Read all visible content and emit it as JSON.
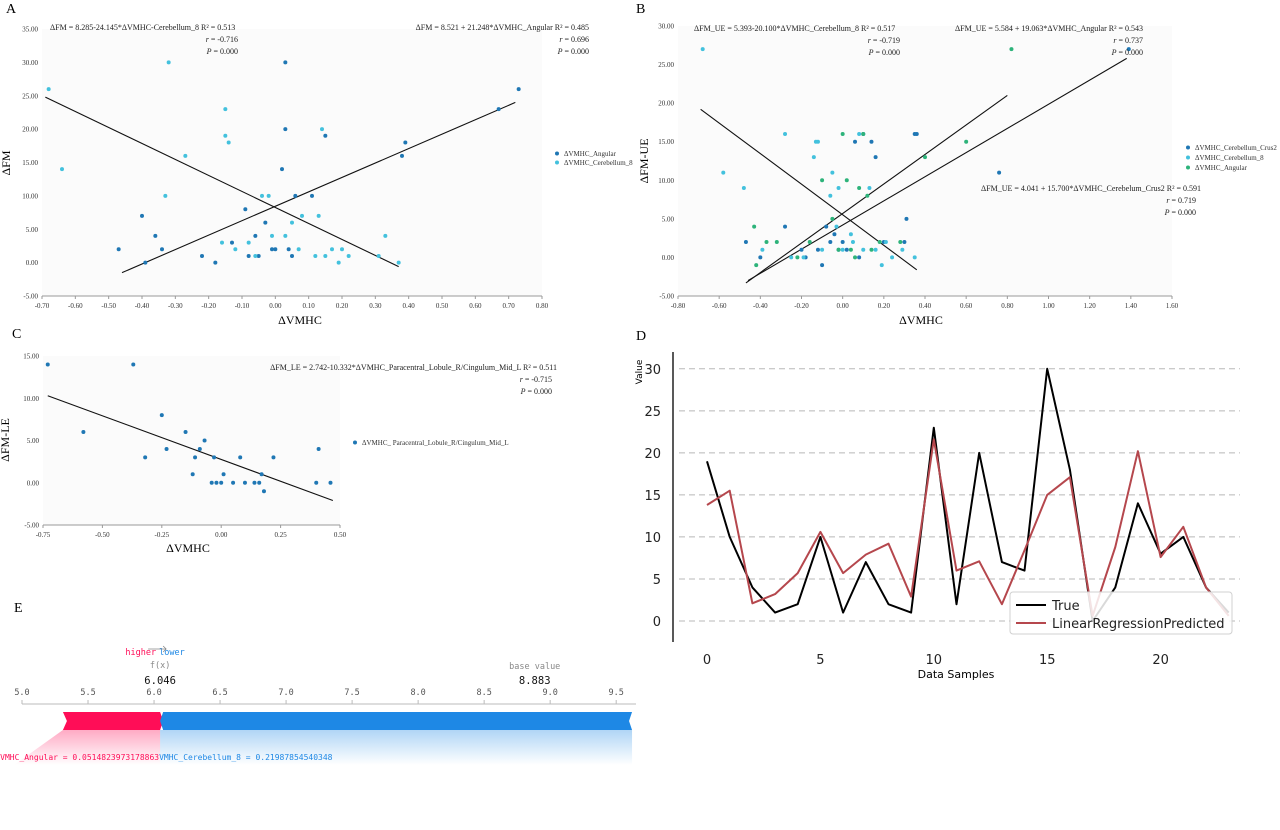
{
  "panels": {
    "A": {
      "letter": "A"
    },
    "B": {
      "letter": "B"
    },
    "C": {
      "letter": "C"
    },
    "D": {
      "letter": "D"
    },
    "E": {
      "letter": "E"
    }
  },
  "chart_data": [
    {
      "id": "A",
      "type": "scatter",
      "xlabel": "ΔVMHC",
      "ylabel": "ΔFM",
      "xlim": [
        -0.7,
        0.8
      ],
      "ylim": [
        -5,
        35
      ],
      "xticks": [
        "-0.70",
        "-0.60",
        "-0.50",
        "-0.40",
        "-0.30",
        "-0.20",
        "-0.10",
        "0.00",
        "0.10",
        "0.20",
        "0.30",
        "0.40",
        "0.50",
        "0.60",
        "0.70",
        "0.80"
      ],
      "yticks": [
        "-5.00",
        "0.00",
        "5.00",
        "10.00",
        "15.00",
        "20.00",
        "25.00",
        "30.00",
        "35.00"
      ],
      "grid": false,
      "legend_position": "right",
      "annotations": [
        {
          "lines": [
            "ΔFM = 8.285-24.145*ΔVMHC-Cerebellum_8 R² = 0.513",
            "r = -0.716",
            "P = 0.000"
          ],
          "anchor": "left"
        },
        {
          "lines": [
            "ΔFM = 8.521 + 21.248*ΔVMHC_Angular R² = 0.485",
            "r = 0.696",
            "P = 0.000"
          ],
          "anchor": "right"
        }
      ],
      "series": [
        {
          "name": "ΔVMHC_Angular",
          "color": "#1f77b4",
          "points": [
            [
              -0.47,
              2
            ],
            [
              -0.4,
              7
            ],
            [
              -0.39,
              0
            ],
            [
              -0.36,
              4
            ],
            [
              -0.34,
              2
            ],
            [
              -0.22,
              1
            ],
            [
              -0.18,
              0
            ],
            [
              -0.13,
              3
            ],
            [
              -0.09,
              8
            ],
            [
              -0.08,
              1
            ],
            [
              -0.06,
              4
            ],
            [
              -0.05,
              1
            ],
            [
              -0.03,
              6
            ],
            [
              -0.01,
              2
            ],
            [
              0.0,
              2
            ],
            [
              0.02,
              14
            ],
            [
              0.03,
              20
            ],
            [
              0.03,
              30
            ],
            [
              0.04,
              2
            ],
            [
              0.05,
              1
            ],
            [
              0.06,
              10
            ],
            [
              0.11,
              10
            ],
            [
              0.15,
              19
            ],
            [
              0.38,
              16
            ],
            [
              0.39,
              18
            ],
            [
              0.67,
              23
            ],
            [
              0.73,
              26
            ]
          ],
          "fit": [
            [
              -0.46,
              -1.5
            ],
            [
              0.72,
              24
            ]
          ]
        },
        {
          "name": "ΔVMHC_Cerebellum_8",
          "color": "#43c1dd",
          "points": [
            [
              -0.68,
              26
            ],
            [
              -0.64,
              14
            ],
            [
              -0.33,
              10
            ],
            [
              -0.32,
              30
            ],
            [
              -0.27,
              16
            ],
            [
              -0.16,
              3
            ],
            [
              -0.15,
              23
            ],
            [
              -0.15,
              19
            ],
            [
              -0.14,
              18
            ],
            [
              -0.12,
              2
            ],
            [
              -0.08,
              3
            ],
            [
              -0.06,
              1
            ],
            [
              -0.04,
              10
            ],
            [
              -0.02,
              10
            ],
            [
              -0.01,
              4
            ],
            [
              0.03,
              4
            ],
            [
              0.05,
              6
            ],
            [
              0.07,
              2
            ],
            [
              0.08,
              7
            ],
            [
              0.12,
              1
            ],
            [
              0.13,
              7
            ],
            [
              0.14,
              20
            ],
            [
              0.15,
              1
            ],
            [
              0.17,
              2
            ],
            [
              0.19,
              0
            ],
            [
              0.2,
              2
            ],
            [
              0.22,
              1
            ],
            [
              0.31,
              1
            ],
            [
              0.33,
              4
            ],
            [
              0.37,
              0
            ]
          ],
          "fit": [
            [
              -0.69,
              24.8
            ],
            [
              0.37,
              -0.6
            ]
          ]
        }
      ]
    },
    {
      "id": "B",
      "type": "scatter",
      "xlabel": "ΔVMHC",
      "ylabel": "ΔFM-UE",
      "xlim": [
        -0.8,
        1.6
      ],
      "ylim": [
        -5,
        30
      ],
      "xticks": [
        "-0.80",
        "-0.60",
        "-0.40",
        "-0.20",
        "0.00",
        "0.20",
        "0.40",
        "0.60",
        "0.80",
        "1.00",
        "1.20",
        "1.40",
        "1.60"
      ],
      "yticks": [
        "-5.00",
        "0.00",
        "5.00",
        "10.00",
        "15.00",
        "20.00",
        "25.00",
        "30.00"
      ],
      "grid": false,
      "legend_position": "right",
      "annotations": [
        {
          "lines": [
            "ΔFM_UE = 5.393-20.100*ΔVMHC_Cerebellum_8 R² = 0.517",
            "r = -0.719",
            "P = 0.000"
          ],
          "anchor": "left"
        },
        {
          "lines": [
            "ΔFM_UE = 5.584 + 19.063*ΔVMHC_Angular R² = 0.543",
            "r = 0.737",
            "P = 0.000"
          ],
          "anchor": "right"
        },
        {
          "lines": [
            "ΔFM_UE = 4.041 + 15.700*ΔVMHC_Cerebelum_Crus2 R² = 0.591",
            "r = 0.719",
            "P = 0.000"
          ],
          "anchor": "right"
        }
      ],
      "series": [
        {
          "name": "ΔVMHC_Cerebellum_Crus2",
          "color": "#1f77b4",
          "points": [
            [
              -0.47,
              2
            ],
            [
              -0.4,
              0
            ],
            [
              -0.28,
              4
            ],
            [
              -0.2,
              1
            ],
            [
              -0.18,
              0
            ],
            [
              -0.12,
              1
            ],
            [
              -0.1,
              -1
            ],
            [
              -0.08,
              4
            ],
            [
              -0.06,
              2
            ],
            [
              -0.04,
              3
            ],
            [
              -0.02,
              1
            ],
            [
              0.0,
              2
            ],
            [
              0.02,
              1
            ],
            [
              0.06,
              15
            ],
            [
              0.08,
              0
            ],
            [
              0.1,
              16
            ],
            [
              0.14,
              15
            ],
            [
              0.16,
              13
            ],
            [
              0.2,
              2
            ],
            [
              0.3,
              2
            ],
            [
              0.31,
              5
            ],
            [
              0.35,
              16
            ],
            [
              0.36,
              16
            ],
            [
              0.76,
              11
            ],
            [
              1.39,
              27
            ]
          ]
        },
        {
          "name": "ΔVMHC_Cerebellum_8",
          "color": "#43c1dd",
          "points": [
            [
              -0.68,
              27
            ],
            [
              -0.58,
              11
            ],
            [
              -0.48,
              9
            ],
            [
              -0.39,
              1
            ],
            [
              -0.28,
              16
            ],
            [
              -0.25,
              0
            ],
            [
              -0.19,
              0
            ],
            [
              -0.14,
              13
            ],
            [
              -0.13,
              15
            ],
            [
              -0.12,
              15
            ],
            [
              -0.1,
              1
            ],
            [
              -0.06,
              8
            ],
            [
              -0.05,
              11
            ],
            [
              -0.03,
              4
            ],
            [
              -0.02,
              9
            ],
            [
              0.0,
              1
            ],
            [
              0.04,
              3
            ],
            [
              0.05,
              2
            ],
            [
              0.08,
              16
            ],
            [
              0.1,
              1
            ],
            [
              0.13,
              9
            ],
            [
              0.16,
              1
            ],
            [
              0.19,
              -1
            ],
            [
              0.21,
              2
            ],
            [
              0.24,
              0
            ],
            [
              0.29,
              1
            ],
            [
              0.35,
              0
            ]
          ],
          "fit": [
            [
              -0.69,
              19.2
            ],
            [
              0.36,
              -1.6
            ]
          ]
        },
        {
          "name": "ΔVMHC_Angular",
          "color": "#2db37a",
          "points": [
            [
              -0.43,
              4
            ],
            [
              -0.42,
              -1
            ],
            [
              -0.37,
              2
            ],
            [
              -0.32,
              2
            ],
            [
              -0.22,
              0
            ],
            [
              -0.16,
              2
            ],
            [
              -0.1,
              10
            ],
            [
              -0.05,
              5
            ],
            [
              -0.02,
              1
            ],
            [
              0.0,
              16
            ],
            [
              0.02,
              10
            ],
            [
              0.04,
              1
            ],
            [
              0.06,
              0
            ],
            [
              0.08,
              9
            ],
            [
              0.1,
              16
            ],
            [
              0.12,
              8
            ],
            [
              0.14,
              1
            ],
            [
              0.18,
              2
            ],
            [
              0.28,
              2
            ],
            [
              0.4,
              13
            ],
            [
              0.6,
              15
            ],
            [
              0.82,
              27
            ]
          ],
          "fit": [
            [
              -0.47,
              -3.3
            ],
            [
              0.8,
              21
            ]
          ]
        },
        {
          "name": "",
          "color": "#000000",
          "points": [],
          "fit": [
            [
              -0.46,
              -3.0
            ],
            [
              1.38,
              25.8
            ]
          ]
        }
      ]
    },
    {
      "id": "C",
      "type": "scatter",
      "xlabel": "ΔVMHC",
      "ylabel": "ΔFM-LE",
      "xlim": [
        -0.75,
        0.5
      ],
      "ylim": [
        -5,
        15
      ],
      "xticks": [
        "-0.75",
        "-0.50",
        "-0.25",
        "0.00",
        "0.25",
        "0.50"
      ],
      "yticks": [
        "-5.00",
        "0.00",
        "5.00",
        "10.00",
        "15.00"
      ],
      "grid": false,
      "legend_position": "right",
      "annotations": [
        {
          "lines": [
            "ΔFM_LE = 2.742-10.332*ΔVMHC_Paracentral_Lobule_R/Cingulum_Mid_L R² = 0.511",
            "r = -0.715",
            "P = 0.000"
          ],
          "anchor": "right"
        }
      ],
      "series": [
        {
          "name": "ΔVMHC_ Paracentral_Lobule_R/Cingulum_Mid_L",
          "color": "#1f77b4",
          "points": [
            [
              -0.73,
              14
            ],
            [
              -0.58,
              6
            ],
            [
              -0.37,
              14
            ],
            [
              -0.32,
              3
            ],
            [
              -0.25,
              8
            ],
            [
              -0.23,
              4
            ],
            [
              -0.15,
              6
            ],
            [
              -0.12,
              1
            ],
            [
              -0.11,
              3
            ],
            [
              -0.09,
              4
            ],
            [
              -0.07,
              5
            ],
            [
              -0.04,
              0
            ],
            [
              -0.03,
              3
            ],
            [
              -0.02,
              0
            ],
            [
              0.0,
              0
            ],
            [
              0.01,
              1
            ],
            [
              0.05,
              0
            ],
            [
              0.08,
              3
            ],
            [
              0.1,
              0
            ],
            [
              0.14,
              0
            ],
            [
              0.16,
              0
            ],
            [
              0.17,
              1
            ],
            [
              0.18,
              -1
            ],
            [
              0.22,
              3
            ],
            [
              0.4,
              0
            ],
            [
              0.41,
              4
            ],
            [
              0.46,
              0
            ]
          ],
          "fit": [
            [
              -0.73,
              10.3
            ],
            [
              0.47,
              -2.1
            ]
          ]
        }
      ]
    },
    {
      "id": "D",
      "type": "line",
      "xlabel": "Data Samples",
      "ylabel": "Value",
      "xlim": [
        -1.5,
        23.5
      ],
      "ylim": [
        -2.5,
        32
      ],
      "xticks": [
        0,
        5,
        10,
        15,
        20
      ],
      "yticks": [
        0,
        5,
        10,
        15,
        20,
        25,
        30
      ],
      "grid": true,
      "legend_position": "bottom-right",
      "series": [
        {
          "name": "True",
          "color": "#000000",
          "values": [
            19,
            10,
            4,
            1,
            2,
            10,
            1,
            7,
            2,
            1,
            23,
            2,
            20,
            7,
            6,
            30,
            18,
            0,
            4,
            14,
            8,
            10,
            4,
            1
          ]
        },
        {
          "name": "LinearRegressionPredicted",
          "color": "#b5474d",
          "values": [
            13.8,
            15.5,
            2.1,
            3.2,
            5.7,
            10.6,
            5.7,
            7.9,
            9.2,
            2.9,
            21.6,
            6.0,
            7.1,
            2.0,
            8.4,
            15.0,
            17.1,
            0.6,
            8.8,
            20.2,
            7.6,
            11.2,
            4.0,
            0.6
          ]
        }
      ]
    },
    {
      "id": "E",
      "type": "bar",
      "subtype": "force",
      "axis_ticks": [
        "5.0",
        "5.5",
        "6.0",
        "6.5",
        "7.0",
        "7.5",
        "8.0",
        "8.5",
        "9.0",
        "9.5"
      ],
      "xlim": [
        5.0,
        9.65
      ],
      "higher_label": "higher",
      "lower_label": "lower",
      "fx_label": "f(x)",
      "fx_value": "6.046",
      "base_label": "base value",
      "base_value": "8.883",
      "fx": 6.046,
      "base": 8.883,
      "segments": [
        {
          "label": "VMHC_Angular = 0.0514823973178863",
          "from": 5.31,
          "to": 6.046,
          "color": "#ff0d57",
          "direction": "higher"
        },
        {
          "label": "VMHC_Cerebellum_8 = 0.21987854540348",
          "from": 6.046,
          "to": 9.62,
          "color": "#1e88e5",
          "direction": "lower"
        }
      ]
    }
  ]
}
